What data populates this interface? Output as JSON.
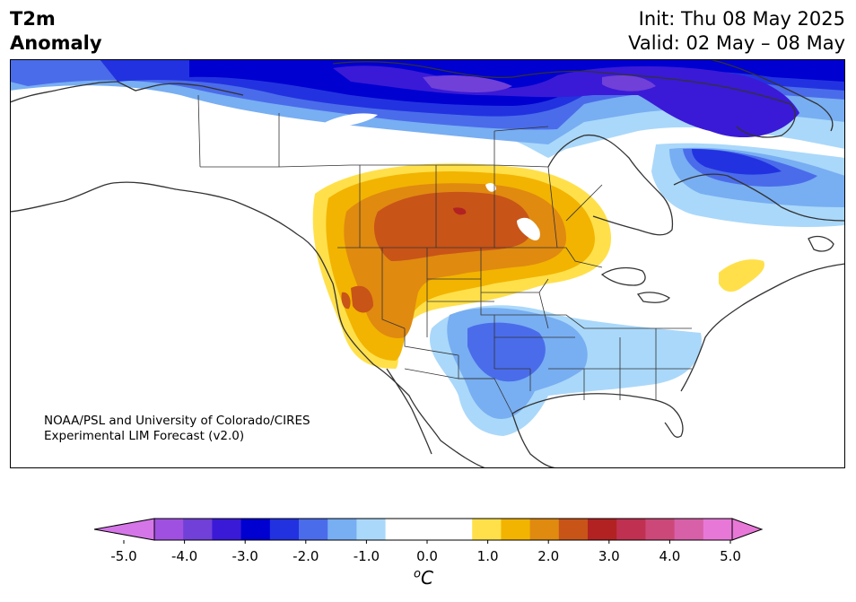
{
  "header": {
    "title_line1": "T2m",
    "title_line2": "Anomaly",
    "init_text": "Init: Thu 08 May 2025",
    "valid_text": "Valid: 02 May – 08 May"
  },
  "credit": {
    "line1": "NOAA/PSL and University of Colorado/CIRES",
    "line2": "Experimental LIM Forecast (v2.0)"
  },
  "colorbar": {
    "unit_symbol": "o",
    "unit_letter": "C",
    "levels": [
      "-5.0",
      "-4.5",
      "-4.0",
      "-3.5",
      "-3.0",
      "-2.5",
      "-2.0",
      "-1.5",
      "-1.0",
      "-0.5",
      "0.5",
      "1.0",
      "1.5",
      "2.0",
      "2.5",
      "3.0",
      "3.5",
      "4.0",
      "4.5",
      "5.0"
    ],
    "tick_labels": [
      "-5.0",
      "-4.0",
      "-3.0",
      "-2.0",
      "-1.0",
      "0.0",
      "1.0",
      "2.0",
      "3.0",
      "4.0",
      "5.0"
    ],
    "colors": [
      "#d576e8",
      "#a050e0",
      "#7040d8",
      "#3a1ad6",
      "#0000d0",
      "#2232e0",
      "#4a6cea",
      "#78aef2",
      "#aad8fa",
      "#ffffff",
      "#ffffff",
      "#ffe04a",
      "#f2b400",
      "#e08a10",
      "#c85418",
      "#b22222",
      "#c03050",
      "#cc4878",
      "#d860a8",
      "#e878d8"
    ],
    "under_color": "#d576e8",
    "over_color": "#e878d8"
  },
  "map_colors": {
    "ocean": "#ffffff",
    "coast": "#333333"
  }
}
